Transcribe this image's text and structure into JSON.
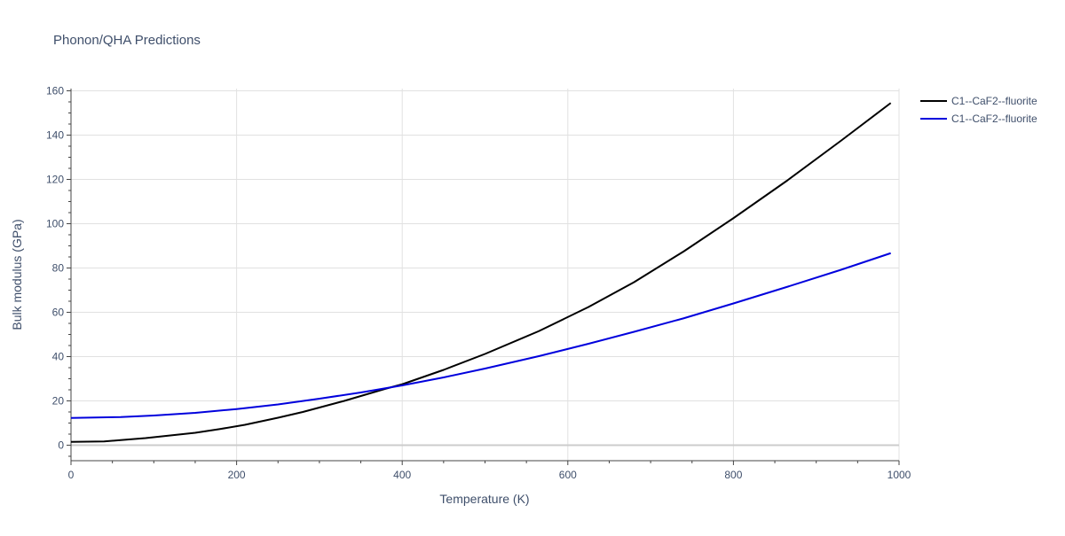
{
  "chart_data": {
    "type": "line",
    "title": "Phonon/QHA Predictions",
    "xlabel": "Temperature (K)",
    "ylabel": "Bulk modulus (GPa)",
    "xlim": [
      0,
      1000
    ],
    "ylim": [
      -7,
      161
    ],
    "x_ticks": [
      0,
      200,
      400,
      600,
      800,
      1000
    ],
    "y_ticks": [
      0,
      20,
      40,
      60,
      80,
      100,
      120,
      140,
      160
    ],
    "grid": true,
    "legend_position": "top-right",
    "series": [
      {
        "name": "C1--CaF2--fluorite",
        "color": "#000000",
        "x": [
          0,
          40,
          60,
          90,
          110,
          150,
          180,
          210,
          250,
          280,
          330,
          380,
          400,
          450,
          500,
          565,
          625,
          680,
          740,
          800,
          865,
          930,
          990
        ],
        "y": [
          1.5,
          1.7,
          2.3,
          3.2,
          4.0,
          5.6,
          7.3,
          9.2,
          12.4,
          15.0,
          20.0,
          25.5,
          27.5,
          34.0,
          41.2,
          51.5,
          62.4,
          73.6,
          87.5,
          102.5,
          119.5,
          137.5,
          154.5
        ]
      },
      {
        "name": "C1--CaF2--fluorite",
        "color": "#0000dd",
        "x": [
          0,
          60,
          100,
          150,
          200,
          250,
          300,
          350,
          400,
          450,
          500,
          565,
          625,
          680,
          740,
          800,
          865,
          930,
          990
        ],
        "y": [
          12.3,
          12.7,
          13.4,
          14.6,
          16.3,
          18.4,
          21.0,
          23.8,
          27.0,
          30.6,
          34.6,
          40.2,
          45.8,
          51.2,
          57.3,
          64.0,
          71.5,
          79.2,
          86.7
        ]
      }
    ]
  }
}
